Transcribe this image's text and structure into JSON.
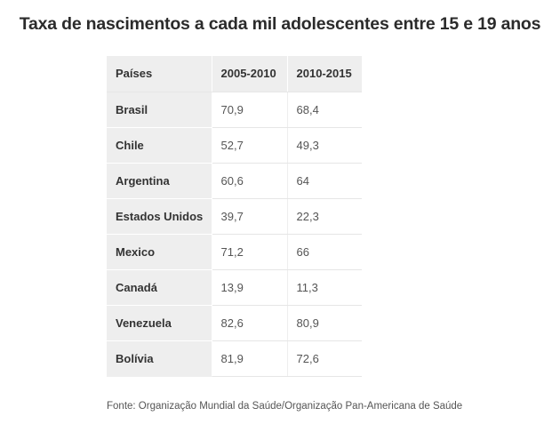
{
  "title": "Taxa de nascimentos a cada mil adolescentes entre 15 e 19 anos",
  "table": {
    "headers": [
      "Países",
      "2005-2010",
      "2010-2015"
    ],
    "rows": [
      {
        "country": "Brasil",
        "p2005_2010": "70,9",
        "p2010_2015": "68,4"
      },
      {
        "country": "Chile",
        "p2005_2010": "52,7",
        "p2010_2015": "49,3"
      },
      {
        "country": "Argentina",
        "p2005_2010": "60,6",
        "p2010_2015": "64"
      },
      {
        "country": "Estados Unidos",
        "p2005_2010": "39,7",
        "p2010_2015": "22,3"
      },
      {
        "country": "Mexico",
        "p2005_2010": "71,2",
        "p2010_2015": "66"
      },
      {
        "country": "Canadá",
        "p2005_2010": "13,9",
        "p2010_2015": "11,3"
      },
      {
        "country": "Venezuela",
        "p2005_2010": "82,6",
        "p2010_2015": "80,9"
      },
      {
        "country": "Bolívia",
        "p2005_2010": "81,9",
        "p2010_2015": "72,6"
      }
    ]
  },
  "source": "Fonte: Organização Mundial da Saúde/Organização Pan-Americana de Saúde"
}
